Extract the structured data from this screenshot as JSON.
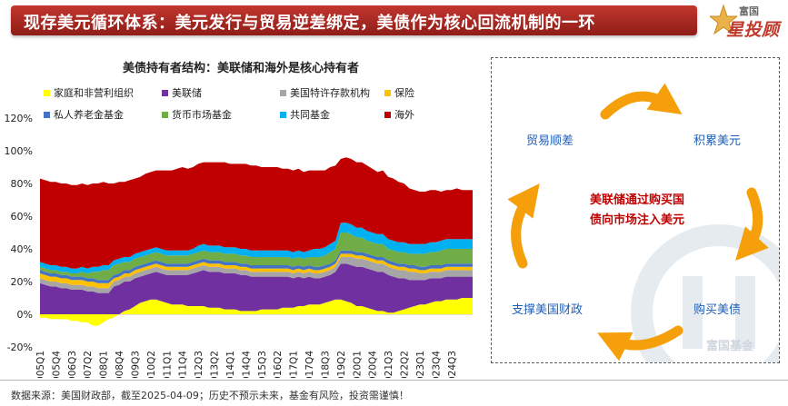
{
  "header": {
    "title": "现存美元循环体系：美元发行与贸易逆差绑定，美债作为核心回流机制的一环",
    "logo_top": "富国",
    "logo_main": "星投顾"
  },
  "chart_data": {
    "type": "area",
    "stacked": true,
    "title": "美债持有者结构：美联储和海外是核心持有者",
    "ylim": [
      -20,
      120
    ],
    "yticks": [
      -20,
      0,
      20,
      40,
      60,
      80,
      100,
      120
    ],
    "ytick_labels": [
      "-20%",
      "0%",
      "20%",
      "40%",
      "60%",
      "80%",
      "100%",
      "120%"
    ],
    "xtick_labels": [
      "2005Q1",
      "2005Q4",
      "2006Q3",
      "2007Q2",
      "2008Q1",
      "2008Q4",
      "2009Q3",
      "2010Q2",
      "2011Q1",
      "2011Q4",
      "2012Q3",
      "2013Q2",
      "2014Q1",
      "2014Q4",
      "2015Q3",
      "2016Q2",
      "2017Q1",
      "2017Q4",
      "2018Q3",
      "2019Q2",
      "2020Q1",
      "2020Q4",
      "2021Q3",
      "2022Q2",
      "2023Q1",
      "2023Q4",
      "2024Q3"
    ],
    "legend": [
      {
        "name": "家庭和非营利组织",
        "color": "#ffff00"
      },
      {
        "name": "美联储",
        "color": "#7030a0"
      },
      {
        "name": "美国特许存款机构",
        "color": "#a6a6a6"
      },
      {
        "name": "保险",
        "color": "#ffc000"
      },
      {
        "name": "私人养老金基金",
        "color": "#4472c4"
      },
      {
        "name": "货币市场基金",
        "color": "#70ad47"
      },
      {
        "name": "共同基金",
        "color": "#00b0f0"
      },
      {
        "name": "海外",
        "color": "#c00000"
      }
    ],
    "series": [
      {
        "name": "家庭和非营利组织",
        "color": "#ffff00",
        "values": [
          -2,
          -2,
          -3,
          -3,
          -3,
          -3,
          -4,
          -4,
          -5,
          -5,
          -7,
          -7,
          -5,
          -3,
          -2,
          0,
          2,
          3,
          5,
          7,
          8,
          9,
          9,
          8,
          7,
          6,
          6,
          6,
          5,
          5,
          5,
          5,
          4,
          4,
          4,
          3,
          3,
          3,
          2,
          2,
          2,
          2,
          3,
          3,
          3,
          3,
          4,
          4,
          4,
          5,
          5,
          6,
          6,
          6,
          7,
          8,
          9,
          9,
          8,
          7,
          5,
          5,
          4,
          3,
          2,
          2,
          1,
          1,
          2,
          3,
          4,
          5,
          6,
          6,
          7,
          8,
          8,
          9,
          9,
          9,
          10,
          10,
          10
        ]
      },
      {
        "name": "美联储",
        "color": "#7030a0",
        "values": [
          19,
          18,
          17,
          17,
          16,
          16,
          15,
          15,
          15,
          14,
          14,
          13,
          13,
          13,
          17,
          18,
          18,
          17,
          17,
          16,
          16,
          16,
          17,
          17,
          17,
          18,
          18,
          18,
          19,
          20,
          21,
          22,
          22,
          22,
          22,
          22,
          22,
          22,
          22,
          22,
          21,
          21,
          20,
          20,
          20,
          20,
          19,
          19,
          18,
          18,
          17,
          17,
          16,
          16,
          16,
          16,
          17,
          22,
          23,
          23,
          24,
          24,
          24,
          24,
          24,
          24,
          23,
          22,
          20,
          19,
          17,
          16,
          15,
          15,
          15,
          14,
          14,
          14,
          14,
          14,
          13,
          13,
          13
        ]
      },
      {
        "name": "美国特许存款机构",
        "color": "#a6a6a6",
        "values": [
          3,
          3,
          3,
          3,
          3,
          3,
          3,
          3,
          3,
          3,
          3,
          3,
          3,
          3,
          3,
          3,
          3,
          3,
          3,
          3,
          3,
          3,
          3,
          3,
          3,
          3,
          3,
          3,
          3,
          3,
          3,
          3,
          3,
          3,
          3,
          3,
          3,
          3,
          3,
          3,
          3,
          3,
          3,
          3,
          3,
          3,
          3,
          3,
          3,
          3,
          3,
          3,
          3,
          3,
          3,
          3,
          3,
          4,
          4,
          5,
          5,
          5,
          5,
          5,
          5,
          5,
          5,
          5,
          5,
          5,
          5,
          5,
          4,
          4,
          4,
          4,
          4,
          4,
          4,
          4,
          4,
          4,
          4
        ]
      },
      {
        "name": "保险",
        "color": "#ffc000",
        "values": [
          3,
          3,
          3,
          3,
          3,
          3,
          3,
          3,
          3,
          3,
          3,
          3,
          3,
          3,
          2,
          2,
          2,
          2,
          2,
          2,
          2,
          2,
          2,
          2,
          2,
          2,
          2,
          2,
          2,
          2,
          2,
          2,
          2,
          2,
          2,
          2,
          2,
          2,
          2,
          2,
          2,
          2,
          2,
          2,
          2,
          2,
          2,
          2,
          2,
          2,
          2,
          2,
          2,
          2,
          2,
          2,
          2,
          2,
          2,
          2,
          2,
          2,
          2,
          2,
          2,
          2,
          2,
          2,
          2,
          2,
          2,
          2,
          2,
          2,
          2,
          2,
          2,
          2,
          2,
          2,
          2,
          2,
          2
        ]
      },
      {
        "name": "私人养老金基金",
        "color": "#4472c4",
        "values": [
          2,
          2,
          2,
          2,
          2,
          2,
          2,
          2,
          2,
          2,
          2,
          2,
          2,
          2,
          2,
          2,
          2,
          2,
          2,
          2,
          2,
          2,
          2,
          2,
          2,
          2,
          2,
          2,
          2,
          2,
          2,
          2,
          2,
          2,
          2,
          2,
          2,
          2,
          2,
          2,
          2,
          2,
          2,
          2,
          2,
          2,
          2,
          2,
          2,
          2,
          2,
          2,
          2,
          2,
          2,
          2,
          2,
          2,
          2,
          2,
          2,
          2,
          2,
          2,
          2,
          2,
          2,
          2,
          2,
          2,
          2,
          2,
          2,
          2,
          2,
          2,
          2,
          2,
          2,
          2,
          2,
          2,
          2
        ]
      },
      {
        "name": "货币市场基金",
        "color": "#70ad47",
        "values": [
          2,
          2,
          2,
          2,
          2,
          2,
          2,
          2,
          3,
          3,
          4,
          5,
          6,
          6,
          6,
          6,
          5,
          5,
          5,
          5,
          5,
          5,
          5,
          5,
          5,
          5,
          5,
          5,
          5,
          5,
          5,
          5,
          5,
          5,
          5,
          5,
          5,
          5,
          5,
          5,
          5,
          5,
          5,
          5,
          5,
          5,
          5,
          5,
          5,
          5,
          5,
          5,
          6,
          6,
          6,
          7,
          7,
          11,
          11,
          10,
          9,
          9,
          8,
          8,
          8,
          8,
          7,
          7,
          7,
          7,
          7,
          7,
          8,
          8,
          8,
          8,
          9,
          9,
          9,
          9,
          9,
          9,
          9
        ]
      },
      {
        "name": "共同基金",
        "color": "#00b0f0",
        "values": [
          3,
          3,
          3,
          3,
          3,
          3,
          3,
          3,
          3,
          3,
          3,
          3,
          3,
          3,
          3,
          3,
          3,
          3,
          3,
          3,
          3,
          3,
          3,
          3,
          3,
          3,
          3,
          3,
          3,
          3,
          4,
          4,
          4,
          4,
          4,
          4,
          4,
          4,
          4,
          4,
          4,
          4,
          4,
          4,
          4,
          4,
          4,
          4,
          4,
          4,
          4,
          4,
          5,
          5,
          5,
          5,
          5,
          6,
          6,
          6,
          6,
          6,
          6,
          6,
          6,
          6,
          6,
          6,
          6,
          6,
          6,
          6,
          6,
          6,
          6,
          6,
          6,
          6,
          6,
          6,
          6,
          6,
          6
        ]
      },
      {
        "name": "海外",
        "color": "#c00000",
        "values": [
          51,
          51,
          51,
          51,
          51,
          51,
          51,
          51,
          51,
          51,
          51,
          51,
          51,
          50,
          47,
          47,
          46,
          47,
          46,
          46,
          47,
          47,
          47,
          48,
          49,
          49,
          50,
          51,
          50,
          50,
          50,
          50,
          51,
          51,
          51,
          52,
          51,
          51,
          52,
          52,
          52,
          52,
          51,
          51,
          51,
          51,
          50,
          50,
          50,
          50,
          49,
          49,
          48,
          48,
          47,
          47,
          46,
          39,
          40,
          40,
          40,
          40,
          40,
          39,
          38,
          39,
          38,
          38,
          37,
          36,
          34,
          33,
          32,
          32,
          32,
          32,
          30,
          30,
          30,
          31,
          30,
          30,
          30
        ]
      }
    ]
  },
  "diagram": {
    "labels": {
      "trade_deficit": "贸易顺差",
      "accumulate_usd": "积累美元",
      "buy_treasuries": "购买美债",
      "support_finance": "支撑美国财政"
    },
    "center_line1": "美联储通过购买国",
    "center_line2": "债向市场注入美元",
    "watermark_text": "富国基金",
    "arrow_color": "#f5a00a"
  },
  "footer": {
    "text": "数据来源：美国财政部，截至2025-04-09；历史不预示未来，基金有风险，投资需谨慎！"
  }
}
